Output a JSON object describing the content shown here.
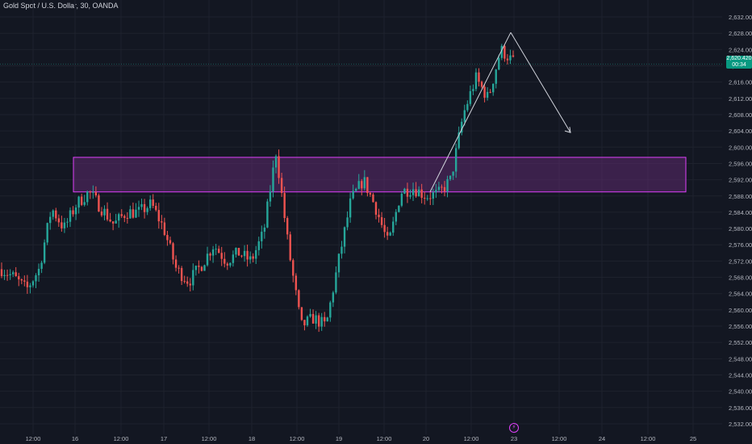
{
  "header": {
    "symbol_title": "Gold Spot / U.S. Dollar, 30, OANDA"
  },
  "price_tag": {
    "price": "2,620.420",
    "countdown": "00:34"
  },
  "colors": {
    "background": "#131722",
    "up": "#26a69a",
    "down": "#ef5350",
    "zone_fill": "#5c2a6e",
    "zone_border": "#e040fb",
    "projection": "#d1d4dc",
    "price_tag": "#089981"
  },
  "chart_data": {
    "type": "candlestick",
    "title": "Gold Spot / U.S. Dollar, 30, OANDA",
    "xlabel": "",
    "ylabel": "",
    "y_ticks": [
      "2,632.000",
      "2,628.000",
      "2,624.000",
      "2,620.000",
      "2,616.000",
      "2,612.000",
      "2,608.000",
      "2,604.000",
      "2,600.000",
      "2,596.000",
      "2,592.000",
      "2,588.000",
      "2,584.000",
      "2,580.000",
      "2,576.000",
      "2,572.000",
      "2,568.000",
      "2,564.000",
      "2,560.000",
      "2,556.000",
      "2,552.000",
      "2,548.000",
      "2,544.000",
      "2,540.000",
      "2,536.000",
      "2,532.000"
    ],
    "x_ticks": [
      "12:00",
      "16",
      "12:00",
      "17",
      "12:00",
      "18",
      "12:00",
      "19",
      "12:00",
      "20",
      "12:00",
      "23",
      "12:00",
      "24",
      "12:00",
      "25"
    ],
    "ylim": [
      2530.8,
      2633.6
    ],
    "current_price": 2620.42,
    "grid": true,
    "path": [
      2570.0,
      2568.0,
      2565.0,
      2570.0,
      2585.0,
      2580.0,
      2586.0,
      2589.0,
      2585.0,
      2581.0,
      2584.0,
      2584.0,
      2586.0,
      2580.0,
      2570.0,
      2567.0,
      2571.0,
      2576.0,
      2572.0,
      2574.0,
      2572.0,
      2579.0,
      2599.0,
      2575.0,
      2556.0,
      2558.0,
      2556.0,
      2572.0,
      2587.0,
      2592.0,
      2585.0,
      2576.0,
      2589.0,
      2590.0,
      2588.0,
      2588.5,
      2592.0,
      2608.0,
      2617.0,
      2612.0,
      2624.0,
      2621.0
    ],
    "zone": {
      "top": 2597.5,
      "bottom": 2589.0,
      "x_start": "16",
      "x_end": "25"
    },
    "projection": {
      "peak": 2628.2,
      "target": 2603.6
    }
  }
}
